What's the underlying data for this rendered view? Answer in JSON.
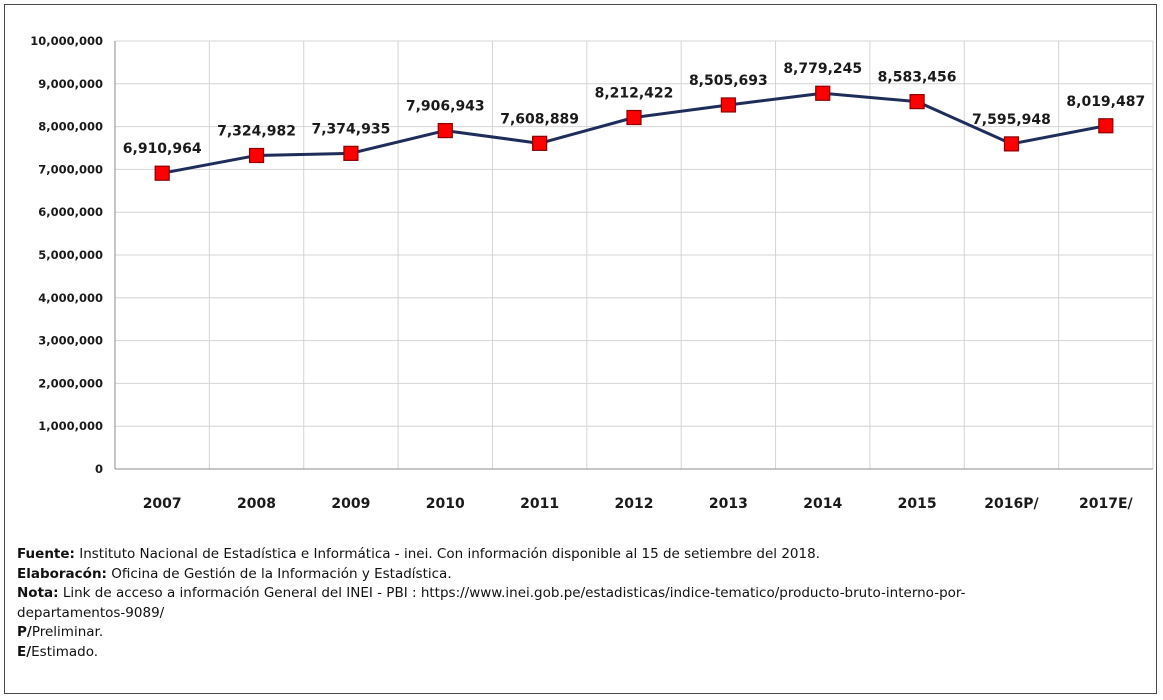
{
  "chart_data": {
    "type": "line",
    "categories": [
      "2007",
      "2008",
      "2009",
      "2010",
      "2011",
      "2012",
      "2013",
      "2014",
      "2015",
      "2016P/",
      "2017E/"
    ],
    "values": [
      6910964,
      7324982,
      7374935,
      7906943,
      7608889,
      8212422,
      8505693,
      8779245,
      8583456,
      7595948,
      8019487
    ],
    "data_labels": [
      "6,910,964",
      "7,324,982",
      "7,374,935",
      "7,906,943",
      "7,608,889",
      "8,212,422",
      "8,505,693",
      "8,779,245",
      "8,583,456",
      "7,595,948",
      "8,019,487"
    ],
    "y_ticks": [
      0,
      1000000,
      2000000,
      3000000,
      4000000,
      5000000,
      6000000,
      7000000,
      8000000,
      9000000,
      10000000
    ],
    "y_tick_labels": [
      "0",
      "1,000,000",
      "2,000,000",
      "3,000,000",
      "4,000,000",
      "5,000,000",
      "6,000,000",
      "7,000,000",
      "8,000,000",
      "9,000,000",
      "10,000,000"
    ],
    "ylim": [
      0,
      10000000
    ],
    "grid": true,
    "line_color": "#1f2d5a",
    "marker_color": "#ff0000",
    "marker_shape": "square"
  },
  "notes": [
    {
      "label": "Fuente:",
      "text": " Instituto Nacional de Estadística e Informática - inei. Con información disponible al 15 de setiembre del 2018."
    },
    {
      "label": "Elaboracón:",
      "text": " Oficina de Gestión de la Información y Estadística."
    },
    {
      "label": "Nota:",
      "text": " Link de acceso a información General del INEI - PBI : https://www.inei.gob.pe/estadisticas/indice-tematico/producto-bruto-interno-por-"
    },
    {
      "label": "",
      "text": "departamentos-9089/"
    },
    {
      "label": "P/",
      "text": "Preliminar."
    },
    {
      "label": "E/",
      "text": "Estimado."
    }
  ]
}
